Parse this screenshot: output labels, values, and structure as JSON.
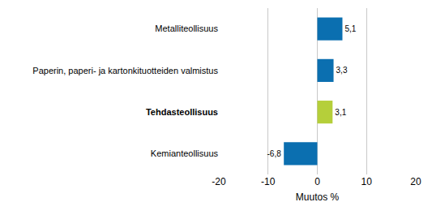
{
  "chart_data": {
    "type": "bar",
    "orientation": "horizontal",
    "x_label": "Muutos %",
    "categories": [
      "Metalliteollisuus",
      "Paperin, paperi- ja kartonkituotteiden valmistus",
      "Tehdasteollisuus",
      "Kemianteollisuus"
    ],
    "values": [
      5.1,
      3.3,
      3.1,
      -6.8
    ],
    "value_labels": [
      "5,1",
      "3,3",
      "3,1",
      "-6,8"
    ],
    "colors": [
      "#0b6fb0",
      "#0b6fb0",
      "#b5cf3a",
      "#0b6fb0"
    ],
    "xlim": [
      -20,
      20
    ],
    "xticks": [
      -20,
      -10,
      0,
      10,
      20
    ],
    "grid": true,
    "data_labels": true
  }
}
